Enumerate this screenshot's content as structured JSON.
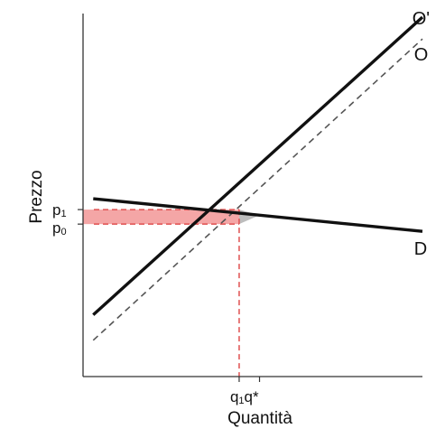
{
  "chart_data": {
    "type": "line",
    "xlabel": "Quantità",
    "ylabel": "Prezzo",
    "x_ticks": [
      {
        "label_main": "q",
        "label_sub": "1",
        "x": 0.46
      },
      {
        "label_main": "q*",
        "label_sub": "",
        "x": 0.52
      }
    ],
    "y_ticks": [
      {
        "label_main": "p",
        "label_sub": "1",
        "y": 0.46
      },
      {
        "label_main": "p",
        "label_sub": "0",
        "y": 0.42
      }
    ],
    "series": [
      {
        "name": "O'",
        "style": "solid",
        "points": [
          [
            0.03,
            0.17
          ],
          [
            1.0,
            0.99
          ]
        ]
      },
      {
        "name": "O",
        "style": "dashed",
        "points": [
          [
            0.03,
            0.1
          ],
          [
            1.0,
            0.93
          ]
        ]
      },
      {
        "name": "D",
        "style": "solid",
        "points": [
          [
            0.03,
            0.49
          ],
          [
            1.0,
            0.4
          ]
        ]
      }
    ],
    "highlight": {
      "color": "#f4a6a6",
      "dash_color": "#e04f4f",
      "triangle_color": "#bdbdbd"
    },
    "xlim": [
      0,
      1
    ],
    "ylim": [
      0,
      1
    ],
    "grid": false
  }
}
